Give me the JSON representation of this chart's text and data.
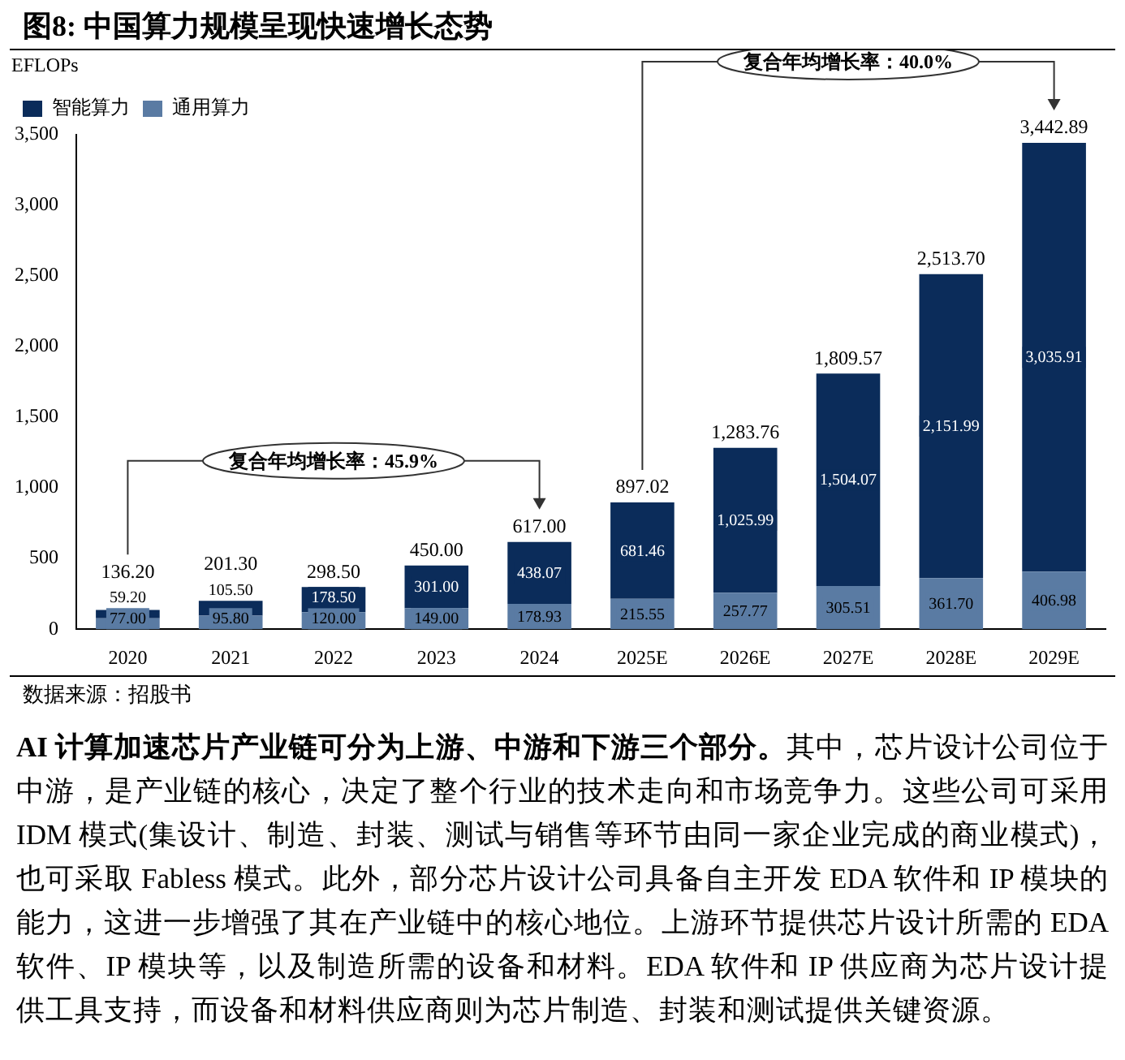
{
  "chart_data": {
    "type": "bar",
    "title": "图8:  中国算力规模呈现快速增长态势",
    "ylabel": "EFLOPs",
    "categories": [
      "2020",
      "2021",
      "2022",
      "2023",
      "2024",
      "2025E",
      "2026E",
      "2027E",
      "2028E",
      "2029E"
    ],
    "stacked": true,
    "legend": "top left",
    "grid": false,
    "ylim": [
      0,
      3500
    ],
    "yticks": [
      {
        "value": 0,
        "label": "0"
      },
      {
        "value": 500,
        "label": "500"
      },
      {
        "value": 1000,
        "label": "1,000"
      },
      {
        "value": 1500,
        "label": "1,500"
      },
      {
        "value": 2000,
        "label": "2,000"
      },
      {
        "value": 2500,
        "label": "2,500"
      },
      {
        "value": 3000,
        "label": "3,000"
      },
      {
        "value": 3500,
        "label": "3,500"
      }
    ],
    "series": [
      {
        "name": "通用算力",
        "color": "#5a7ba3",
        "values": [
          77.0,
          95.8,
          120.0,
          149.0,
          178.93,
          215.55,
          257.77,
          305.51,
          361.7,
          406.98
        ],
        "value_labels": [
          "77.00",
          "95.80",
          "120.00",
          "149.00",
          "178.93",
          "215.55",
          "257.77",
          "305.51",
          "361.70",
          "406.98"
        ]
      },
      {
        "name": "智能算力",
        "color": "#0b2c5a",
        "values": [
          59.2,
          105.5,
          178.5,
          301.0,
          438.07,
          681.46,
          1025.99,
          1504.07,
          2151.99,
          3035.91
        ],
        "value_labels": [
          "59.20",
          "105.50",
          "178.50",
          "301.00",
          "438.07",
          "681.46",
          "1,025.99",
          "1,504.07",
          "2,151.99",
          "3,035.91"
        ]
      }
    ],
    "totals": [
      "136.20",
      "201.30",
      "298.50",
      "450.00",
      "617.00",
      "897.02",
      "1,283.76",
      "1,809.57",
      "2,513.70",
      "3,442.89"
    ],
    "annotations": [
      "复合年均增长率：45.9%",
      "复合年均增长率：40.0%",
      "数据来源：招股书",
      "AI 计算加速芯片产业链可分为上游、中游和下游三个部分。",
      "其中，芯片设计公司位于中游，是产业链的核心，决定了整个行业的技术走向和市场竞争力。这些公司可采用 IDM 模式(集设计、制造、封装、测试与销售等环节由同一家企业完成的商业模式)，也可采取 Fabless 模式。此外，部分芯片设计公司具备自主开发 EDA 软件和 IP 模块的能力，这进一步增强了其在产业链中的核心地位。上游环节提供芯片设计所需的 EDA 软件、IP 模块等，以及制造所需的设备和材料。EDA 软件和 IP 供应商为芯片设计提供工具支持，而设备和材料供应商则为芯片制造、封装和测试提供关键资源。"
    ]
  }
}
